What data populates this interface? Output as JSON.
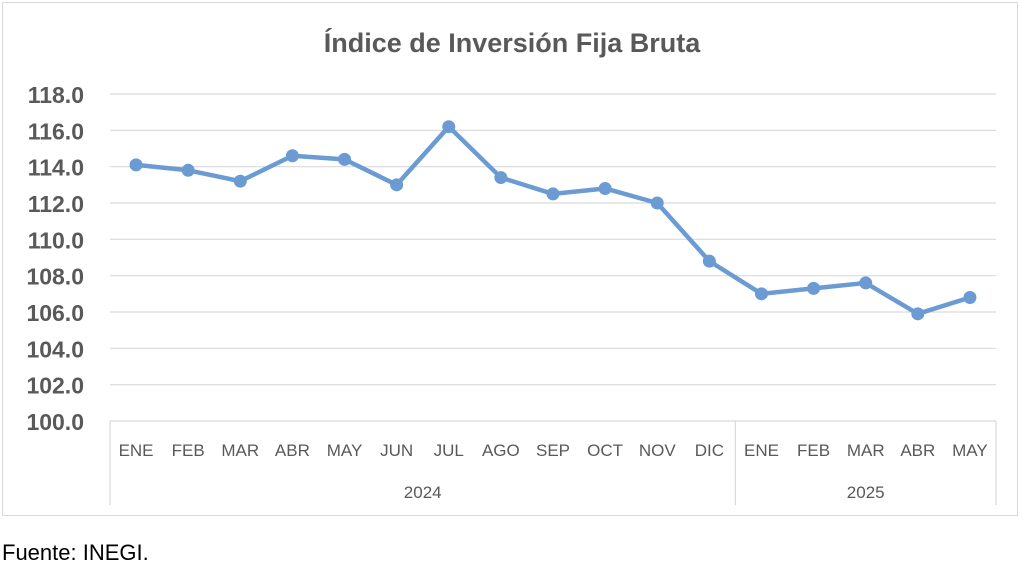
{
  "chart_data": {
    "type": "line",
    "title": "Índice de Inversión Fija Bruta",
    "xlabel": "",
    "ylabel": "",
    "ylim": [
      100,
      118
    ],
    "ytick_step": 2,
    "ytick_labels": [
      "100.0",
      "102.0",
      "104.0",
      "106.0",
      "108.0",
      "110.0",
      "112.0",
      "114.0",
      "116.0",
      "118.0"
    ],
    "grid": true,
    "legend": "none",
    "categories": [
      "ENE",
      "FEB",
      "MAR",
      "ABR",
      "MAY",
      "JUN",
      "JUL",
      "AGO",
      "SEP",
      "OCT",
      "NOV",
      "DIC",
      "ENE",
      "FEB",
      "MAR",
      "ABR",
      "MAY"
    ],
    "groups": [
      {
        "label": "2024",
        "count": 12
      },
      {
        "label": "2025",
        "count": 5
      }
    ],
    "series": [
      {
        "values": [
          114.1,
          113.8,
          113.2,
          114.6,
          114.4,
          113.0,
          116.2,
          113.4,
          112.5,
          112.8,
          112.0,
          108.8,
          107.0,
          107.3,
          107.6,
          105.9,
          106.8
        ]
      }
    ],
    "colors": {
      "line": "#6b9bd2",
      "marker": "#6b9bd2",
      "grid": "#d9d9d9",
      "axis_text": "#595959",
      "title": "#595959"
    }
  },
  "footer": {
    "source": "Fuente: INEGI."
  }
}
